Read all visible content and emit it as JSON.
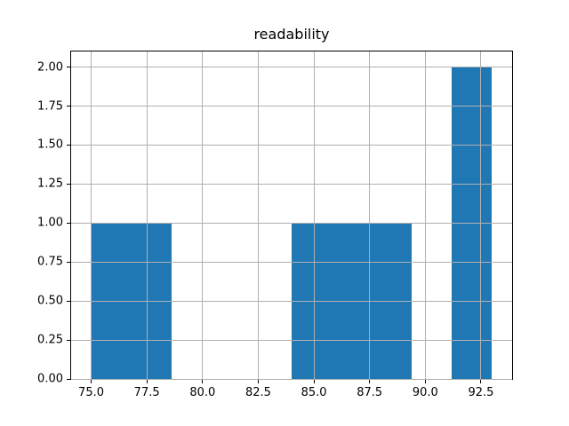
{
  "chart_data": {
    "type": "bar",
    "subtype": "histogram",
    "title": "readability",
    "bin_edges": [
      75.0,
      76.8,
      78.6,
      80.4,
      82.2,
      84.0,
      85.8,
      87.6,
      89.4,
      91.2,
      93.0
    ],
    "counts": [
      1,
      1,
      0,
      0,
      0,
      1,
      1,
      1,
      0,
      2
    ],
    "xlabel": "",
    "ylabel": "",
    "xlim": [
      74.1,
      93.9
    ],
    "ylim": [
      0,
      2.1
    ],
    "xticks": [
      75.0,
      77.5,
      80.0,
      82.5,
      85.0,
      87.5,
      90.0,
      92.5
    ],
    "xtick_labels": [
      "75.0",
      "77.5",
      "80.0",
      "82.5",
      "85.0",
      "87.5",
      "90.0",
      "92.5"
    ],
    "yticks": [
      0.0,
      0.25,
      0.5,
      0.75,
      1.0,
      1.25,
      1.5,
      1.75,
      2.0
    ],
    "ytick_labels": [
      "0.00",
      "0.25",
      "0.50",
      "0.75",
      "1.00",
      "1.25",
      "1.50",
      "1.75",
      "2.00"
    ],
    "grid": true,
    "grid_above_bars": true,
    "legend": null,
    "bar_color": "#1f77b4",
    "grid_color": "#b0b0b0",
    "axis_color": "#000000",
    "background_color": "#ffffff"
  }
}
